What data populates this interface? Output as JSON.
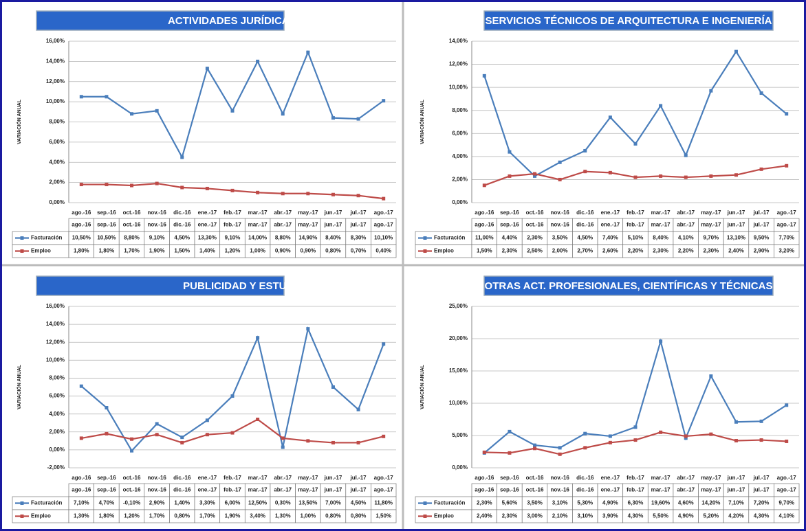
{
  "chart_data": [
    {
      "type": "line",
      "title": "ACTIVIDADES JURÍDICAS Y DE CONSULTORÍA",
      "ylabel": "VARIACIÓN ANUAL",
      "categories": [
        "ago.-16",
        "sep.-16",
        "oct.-16",
        "nov.-16",
        "dic.-16",
        "ene.-17",
        "feb.-17",
        "mar.-17",
        "abr.-17",
        "may.-17",
        "jun.-17",
        "jul.-17",
        "ago.-17"
      ],
      "series": [
        {
          "name": "Facturación",
          "color": "#4a7ebb",
          "values": [
            10.5,
            10.5,
            8.8,
            9.1,
            4.5,
            13.3,
            9.1,
            14.0,
            8.8,
            14.9,
            8.4,
            8.3,
            10.1
          ],
          "value_labels": [
            "10,50%",
            "10,50%",
            "8,80%",
            "9,10%",
            "4,50%",
            "13,30%",
            "9,10%",
            "14,00%",
            "8,80%",
            "14,90%",
            "8,40%",
            "8,30%",
            "10,10%"
          ]
        },
        {
          "name": "Empleo",
          "color": "#be4b48",
          "values": [
            1.8,
            1.8,
            1.7,
            1.9,
            1.5,
            1.4,
            1.2,
            1.0,
            0.9,
            0.9,
            0.8,
            0.7,
            0.4
          ],
          "value_labels": [
            "1,80%",
            "1,80%",
            "1,70%",
            "1,90%",
            "1,50%",
            "1,40%",
            "1,20%",
            "1,00%",
            "0,90%",
            "0,90%",
            "0,80%",
            "0,70%",
            "0,40%"
          ]
        }
      ],
      "ylim": [
        0,
        16
      ],
      "yticks": [
        {
          "value": 0,
          "label": "0,00%"
        },
        {
          "value": 2,
          "label": "2,00%"
        },
        {
          "value": 4,
          "label": "4,00%"
        },
        {
          "value": 6,
          "label": "6,00%"
        },
        {
          "value": 8,
          "label": "8,00%"
        },
        {
          "value": 10,
          "label": "10,00%"
        },
        {
          "value": 12,
          "label": "12,00%"
        },
        {
          "value": 14,
          "label": "14,00%"
        },
        {
          "value": 16,
          "label": "16,00%"
        }
      ],
      "grid": true
    },
    {
      "type": "line",
      "title": "SERVICIOS TÉCNICOS DE ARQUITECTURA E INGENIERÍA",
      "ylabel": "VARIACIÓN ANUAL",
      "categories": [
        "ago.-16",
        "sep.-16",
        "oct.-16",
        "nov.-16",
        "dic.-16",
        "ene.-17",
        "feb.-17",
        "mar.-17",
        "abr.-17",
        "may.-17",
        "jun.-17",
        "jul.-17",
        "ago.-17"
      ],
      "series": [
        {
          "name": "Facturación",
          "color": "#4a7ebb",
          "values": [
            11.0,
            4.4,
            2.3,
            3.5,
            4.5,
            7.4,
            5.1,
            8.4,
            4.1,
            9.7,
            13.1,
            9.5,
            7.7
          ],
          "value_labels": [
            "11,00%",
            "4,40%",
            "2,30%",
            "3,50%",
            "4,50%",
            "7,40%",
            "5,10%",
            "8,40%",
            "4,10%",
            "9,70%",
            "13,10%",
            "9,50%",
            "7,70%"
          ]
        },
        {
          "name": "Empleo",
          "color": "#be4b48",
          "values": [
            1.5,
            2.3,
            2.5,
            2.0,
            2.7,
            2.6,
            2.2,
            2.3,
            2.2,
            2.3,
            2.4,
            2.9,
            3.2
          ],
          "value_labels": [
            "1,50%",
            "2,30%",
            "2,50%",
            "2,00%",
            "2,70%",
            "2,60%",
            "2,20%",
            "2,30%",
            "2,20%",
            "2,30%",
            "2,40%",
            "2,90%",
            "3,20%"
          ]
        }
      ],
      "ylim": [
        0,
        14
      ],
      "yticks": [
        {
          "value": 0,
          "label": "0,00%"
        },
        {
          "value": 2,
          "label": "2,00%"
        },
        {
          "value": 4,
          "label": "4,00%"
        },
        {
          "value": 6,
          "label": "6,00%"
        },
        {
          "value": 8,
          "label": "8,00%"
        },
        {
          "value": 10,
          "label": "10,00%"
        },
        {
          "value": 12,
          "label": "12,00%"
        },
        {
          "value": 14,
          "label": "14,00%"
        }
      ],
      "grid": true
    },
    {
      "type": "line",
      "title": "PUBLICIDAD Y ESTUDIOS DE MERCADO",
      "ylabel": "VARIACIÓN ANUAL",
      "categories": [
        "ago.-16",
        "sep.-16",
        "oct.-16",
        "nov.-16",
        "dic.-16",
        "ene.-17",
        "feb.-17",
        "mar.-17",
        "abr.-17",
        "may.-17",
        "jun.-17",
        "jul.-17",
        "ago.-17"
      ],
      "series": [
        {
          "name": "Facturación",
          "color": "#4a7ebb",
          "values": [
            7.1,
            4.7,
            -0.1,
            2.9,
            1.4,
            3.3,
            6.0,
            12.5,
            0.3,
            13.5,
            7.0,
            4.5,
            11.8
          ],
          "value_labels": [
            "7,10%",
            "4,70%",
            "-0,10%",
            "2,90%",
            "1,40%",
            "3,30%",
            "6,00%",
            "12,50%",
            "0,30%",
            "13,50%",
            "7,00%",
            "4,50%",
            "11,80%"
          ]
        },
        {
          "name": "Empleo",
          "color": "#be4b48",
          "values": [
            1.3,
            1.8,
            1.2,
            1.7,
            0.8,
            1.7,
            1.9,
            3.4,
            1.3,
            1.0,
            0.8,
            0.8,
            1.5
          ],
          "value_labels": [
            "1,30%",
            "1,80%",
            "1,20%",
            "1,70%",
            "0,80%",
            "1,70%",
            "1,90%",
            "3,40%",
            "1,30%",
            "1,00%",
            "0,80%",
            "0,80%",
            "1,50%"
          ]
        }
      ],
      "ylim": [
        -2,
        16
      ],
      "yticks": [
        {
          "value": -2,
          "label": "-2,00%"
        },
        {
          "value": 0,
          "label": "0,00%"
        },
        {
          "value": 2,
          "label": "2,00%"
        },
        {
          "value": 4,
          "label": "4,00%"
        },
        {
          "value": 6,
          "label": "6,00%"
        },
        {
          "value": 8,
          "label": "8,00%"
        },
        {
          "value": 10,
          "label": "10,00%"
        },
        {
          "value": 12,
          "label": "12,00%"
        },
        {
          "value": 14,
          "label": "14,00%"
        },
        {
          "value": 16,
          "label": "16,00%"
        }
      ],
      "grid": true
    },
    {
      "type": "line",
      "title": "OTRAS ACT. PROFESIONALES, CIENTÍFICAS Y TÉCNICAS",
      "ylabel": "VARIACIÓN ANUAL",
      "categories": [
        "ago.-16",
        "sep.-16",
        "oct.-16",
        "nov.-16",
        "dic.-16",
        "ene.-17",
        "feb.-17",
        "mar.-17",
        "abr.-17",
        "may.-17",
        "jun.-17",
        "jul.-17",
        "ago.-17"
      ],
      "series": [
        {
          "name": "Facturación",
          "color": "#4a7ebb",
          "values": [
            2.3,
            5.6,
            3.5,
            3.1,
            5.3,
            4.9,
            6.3,
            19.6,
            4.6,
            14.2,
            7.1,
            7.2,
            9.7
          ],
          "value_labels": [
            "2,30%",
            "5,60%",
            "3,50%",
            "3,10%",
            "5,30%",
            "4,90%",
            "6,30%",
            "19,60%",
            "4,60%",
            "14,20%",
            "7,10%",
            "7,20%",
            "9,70%"
          ]
        },
        {
          "name": "Empleo",
          "color": "#be4b48",
          "values": [
            2.4,
            2.3,
            3.0,
            2.1,
            3.1,
            3.9,
            4.3,
            5.5,
            4.9,
            5.2,
            4.2,
            4.3,
            4.1
          ],
          "value_labels": [
            "2,40%",
            "2,30%",
            "3,00%",
            "2,10%",
            "3,10%",
            "3,90%",
            "4,30%",
            "5,50%",
            "4,90%",
            "5,20%",
            "4,20%",
            "4,30%",
            "4,10%"
          ]
        }
      ],
      "ylim": [
        0,
        25
      ],
      "yticks": [
        {
          "value": 0,
          "label": "0,00%"
        },
        {
          "value": 5,
          "label": "5,00%"
        },
        {
          "value": 10,
          "label": "10,00%"
        },
        {
          "value": 15,
          "label": "15,00%"
        },
        {
          "value": 20,
          "label": "20,00%"
        },
        {
          "value": 25,
          "label": "25,00%"
        }
      ],
      "grid": true
    }
  ]
}
